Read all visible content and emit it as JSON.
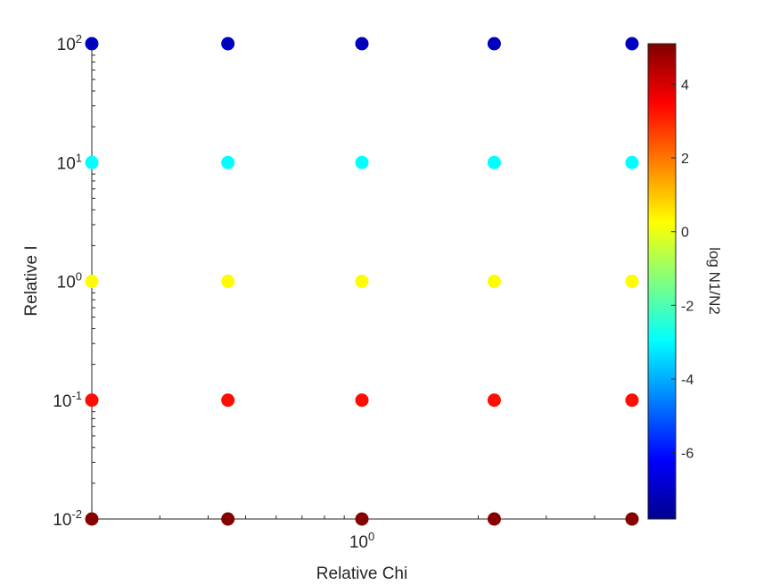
{
  "chart_data": {
    "type": "scatter",
    "xlabel": "Relative Chi",
    "ylabel": "Relative I",
    "xscale": "log",
    "yscale": "log",
    "xlim": [
      0.2,
      5.0
    ],
    "ylim": [
      0.01,
      100
    ],
    "x_ticks": [
      {
        "base": "10",
        "exp": "0",
        "value": 1
      }
    ],
    "y_ticks": [
      {
        "base": "10",
        "exp": "-2",
        "value": 0.01
      },
      {
        "base": "10",
        "exp": "-1",
        "value": 0.1
      },
      {
        "base": "10",
        "exp": "0",
        "value": 1
      },
      {
        "base": "10",
        "exp": "1",
        "value": 10
      },
      {
        "base": "10",
        "exp": "2",
        "value": 100
      }
    ],
    "x_values": [
      0.2,
      0.45,
      1.0,
      2.2,
      5.0
    ],
    "y_values": [
      0.01,
      0.1,
      1,
      10,
      100
    ],
    "color_values_by_y": [
      5,
      3.2,
      0,
      -3.5,
      -7.8
    ],
    "grid": false,
    "colorbar": {
      "label": "log N1/N2",
      "colormap": "jet",
      "range": [
        -7.8,
        5.1
      ],
      "ticks": [
        "4",
        "2",
        "0",
        "-2",
        "-4",
        "-6"
      ],
      "tick_values": [
        4,
        2,
        0,
        -2,
        -4,
        -6
      ]
    }
  }
}
